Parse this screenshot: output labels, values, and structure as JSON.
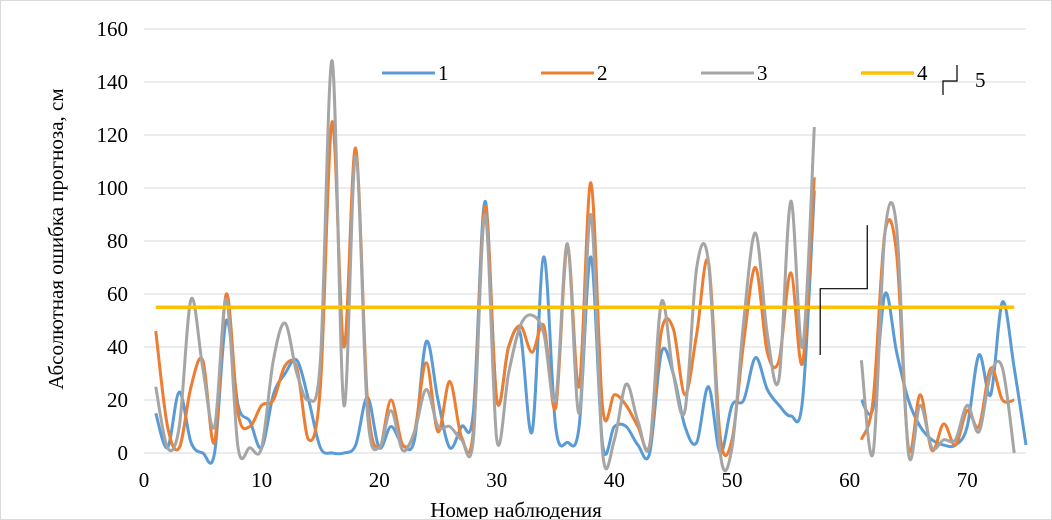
{
  "chart_data": {
    "type": "line",
    "title": "",
    "xlabel": "Номер наблюдения",
    "ylabel": "Абсолютная ошибка прогноза, см",
    "xlim": [
      0,
      75
    ],
    "ylim": [
      0,
      160
    ],
    "xticks": [
      0,
      10,
      20,
      30,
      40,
      50,
      60,
      70
    ],
    "yticks": [
      0,
      20,
      40,
      60,
      80,
      100,
      120,
      140,
      160
    ],
    "grid": "horizontal",
    "legend_position": "top",
    "legend": [
      "1",
      "2",
      "3",
      "4",
      "5"
    ],
    "series": [
      {
        "name": "1",
        "color": "#5B9BD5",
        "points": [
          [
            1,
            15
          ],
          [
            2,
            2
          ],
          [
            3,
            23
          ],
          [
            4,
            4
          ],
          [
            5,
            0
          ],
          [
            6,
            0
          ],
          [
            7,
            50
          ],
          [
            8,
            18
          ],
          [
            9,
            12
          ],
          [
            10,
            2
          ],
          [
            11,
            22
          ],
          [
            12,
            30
          ],
          [
            13,
            35
          ],
          [
            14,
            20
          ],
          [
            15,
            2
          ],
          [
            16,
            0
          ],
          [
            17,
            0
          ],
          [
            18,
            3
          ],
          [
            19,
            21
          ],
          [
            20,
            2
          ],
          [
            21,
            10
          ],
          [
            22,
            3
          ],
          [
            23,
            5
          ],
          [
            24,
            42
          ],
          [
            25,
            20
          ],
          [
            26,
            2
          ],
          [
            27,
            10
          ],
          [
            28,
            15
          ],
          [
            29,
            95
          ],
          [
            30,
            20
          ],
          [
            31,
            40
          ],
          [
            32,
            45
          ],
          [
            33,
            8
          ],
          [
            34,
            74
          ],
          [
            35,
            10
          ],
          [
            36,
            4
          ],
          [
            37,
            10
          ],
          [
            38,
            74
          ],
          [
            39,
            3
          ],
          [
            40,
            10
          ],
          [
            41,
            10
          ],
          [
            42,
            3
          ],
          [
            43,
            0
          ],
          [
            44,
            38
          ],
          [
            45,
            30
          ],
          [
            46,
            10
          ],
          [
            47,
            4
          ],
          [
            48,
            25
          ],
          [
            49,
            0
          ],
          [
            50,
            18
          ],
          [
            51,
            20
          ],
          [
            52,
            36
          ],
          [
            53,
            24
          ],
          [
            54,
            18
          ],
          [
            55,
            14
          ],
          [
            56,
            20
          ],
          [
            57,
            99
          ],
          [
            61,
            20
          ],
          [
            62,
            17
          ],
          [
            63,
            60
          ],
          [
            64,
            38
          ],
          [
            65,
            20
          ],
          [
            66,
            10
          ],
          [
            67,
            5
          ],
          [
            68,
            3
          ],
          [
            69,
            3
          ],
          [
            70,
            10
          ],
          [
            71,
            37
          ],
          [
            72,
            22
          ],
          [
            73,
            57
          ],
          [
            74,
            32
          ],
          [
            75,
            3
          ]
        ]
      },
      {
        "name": "2",
        "color": "#ED7D31",
        "points": [
          [
            1,
            46
          ],
          [
            2,
            10
          ],
          [
            3,
            2
          ],
          [
            4,
            25
          ],
          [
            5,
            35
          ],
          [
            6,
            4
          ],
          [
            7,
            60
          ],
          [
            8,
            15
          ],
          [
            9,
            10
          ],
          [
            10,
            18
          ],
          [
            11,
            20
          ],
          [
            12,
            33
          ],
          [
            13,
            32
          ],
          [
            14,
            5
          ],
          [
            15,
            25
          ],
          [
            16,
            125
          ],
          [
            17,
            40
          ],
          [
            18,
            115
          ],
          [
            19,
            20
          ],
          [
            20,
            2
          ],
          [
            21,
            20
          ],
          [
            22,
            3
          ],
          [
            23,
            8
          ],
          [
            24,
            34
          ],
          [
            25,
            8
          ],
          [
            26,
            27
          ],
          [
            27,
            6
          ],
          [
            28,
            8
          ],
          [
            29,
            93
          ],
          [
            30,
            20
          ],
          [
            31,
            40
          ],
          [
            32,
            48
          ],
          [
            33,
            38
          ],
          [
            34,
            48
          ],
          [
            35,
            17
          ],
          [
            36,
            78
          ],
          [
            37,
            25
          ],
          [
            38,
            102
          ],
          [
            39,
            17
          ],
          [
            40,
            22
          ],
          [
            41,
            18
          ],
          [
            42,
            10
          ],
          [
            43,
            3
          ],
          [
            44,
            46
          ],
          [
            45,
            47
          ],
          [
            46,
            22
          ],
          [
            47,
            45
          ],
          [
            48,
            72
          ],
          [
            49,
            6
          ],
          [
            50,
            5
          ],
          [
            51,
            42
          ],
          [
            52,
            70
          ],
          [
            53,
            38
          ],
          [
            54,
            35
          ],
          [
            55,
            68
          ],
          [
            56,
            34
          ],
          [
            57,
            104
          ],
          [
            61,
            5
          ],
          [
            62,
            20
          ],
          [
            63,
            83
          ],
          [
            64,
            75
          ],
          [
            65,
            2
          ],
          [
            66,
            22
          ],
          [
            67,
            1
          ],
          [
            68,
            11
          ],
          [
            69,
            3
          ],
          [
            70,
            16
          ],
          [
            71,
            10
          ],
          [
            72,
            32
          ],
          [
            73,
            20
          ],
          [
            74,
            20
          ]
        ]
      },
      {
        "name": "3",
        "color": "#A5A5A5",
        "points": [
          [
            1,
            25
          ],
          [
            2,
            2
          ],
          [
            3,
            10
          ],
          [
            4,
            58
          ],
          [
            5,
            32
          ],
          [
            6,
            10
          ],
          [
            7,
            58
          ],
          [
            8,
            2
          ],
          [
            9,
            2
          ],
          [
            10,
            2
          ],
          [
            11,
            35
          ],
          [
            12,
            49
          ],
          [
            13,
            30
          ],
          [
            14,
            20
          ],
          [
            15,
            35
          ],
          [
            16,
            148
          ],
          [
            17,
            18
          ],
          [
            18,
            112
          ],
          [
            19,
            15
          ],
          [
            20,
            2
          ],
          [
            21,
            16
          ],
          [
            22,
            1
          ],
          [
            23,
            8
          ],
          [
            24,
            24
          ],
          [
            25,
            10
          ],
          [
            26,
            10
          ],
          [
            27,
            5
          ],
          [
            28,
            5
          ],
          [
            29,
            90
          ],
          [
            30,
            5
          ],
          [
            31,
            30
          ],
          [
            32,
            48
          ],
          [
            33,
            52
          ],
          [
            34,
            45
          ],
          [
            35,
            20
          ],
          [
            36,
            79
          ],
          [
            37,
            15
          ],
          [
            38,
            90
          ],
          [
            39,
            0
          ],
          [
            40,
            5
          ],
          [
            41,
            26
          ],
          [
            42,
            12
          ],
          [
            43,
            3
          ],
          [
            44,
            57
          ],
          [
            45,
            30
          ],
          [
            46,
            16
          ],
          [
            47,
            70
          ],
          [
            48,
            72
          ],
          [
            49,
            0
          ],
          [
            50,
            2
          ],
          [
            51,
            50
          ],
          [
            52,
            83
          ],
          [
            53,
            45
          ],
          [
            54,
            28
          ],
          [
            55,
            95
          ],
          [
            56,
            40
          ],
          [
            57,
            123
          ],
          [
            61,
            35
          ],
          [
            62,
            0
          ],
          [
            63,
            83
          ],
          [
            64,
            85
          ],
          [
            65,
            0
          ],
          [
            66,
            18
          ],
          [
            67,
            2
          ],
          [
            68,
            5
          ],
          [
            69,
            5
          ],
          [
            70,
            18
          ],
          [
            71,
            8
          ],
          [
            72,
            30
          ],
          [
            73,
            32
          ],
          [
            74,
            0
          ]
        ]
      },
      {
        "name": "4",
        "color": "#FFC000",
        "points": [
          [
            1,
            55
          ],
          [
            74,
            55
          ]
        ]
      },
      {
        "name": "5",
        "color": "#000000",
        "points": [
          [
            57.5,
            37
          ],
          [
            57.5,
            62
          ],
          [
            61.5,
            62
          ],
          [
            61.5,
            86
          ]
        ]
      }
    ]
  }
}
